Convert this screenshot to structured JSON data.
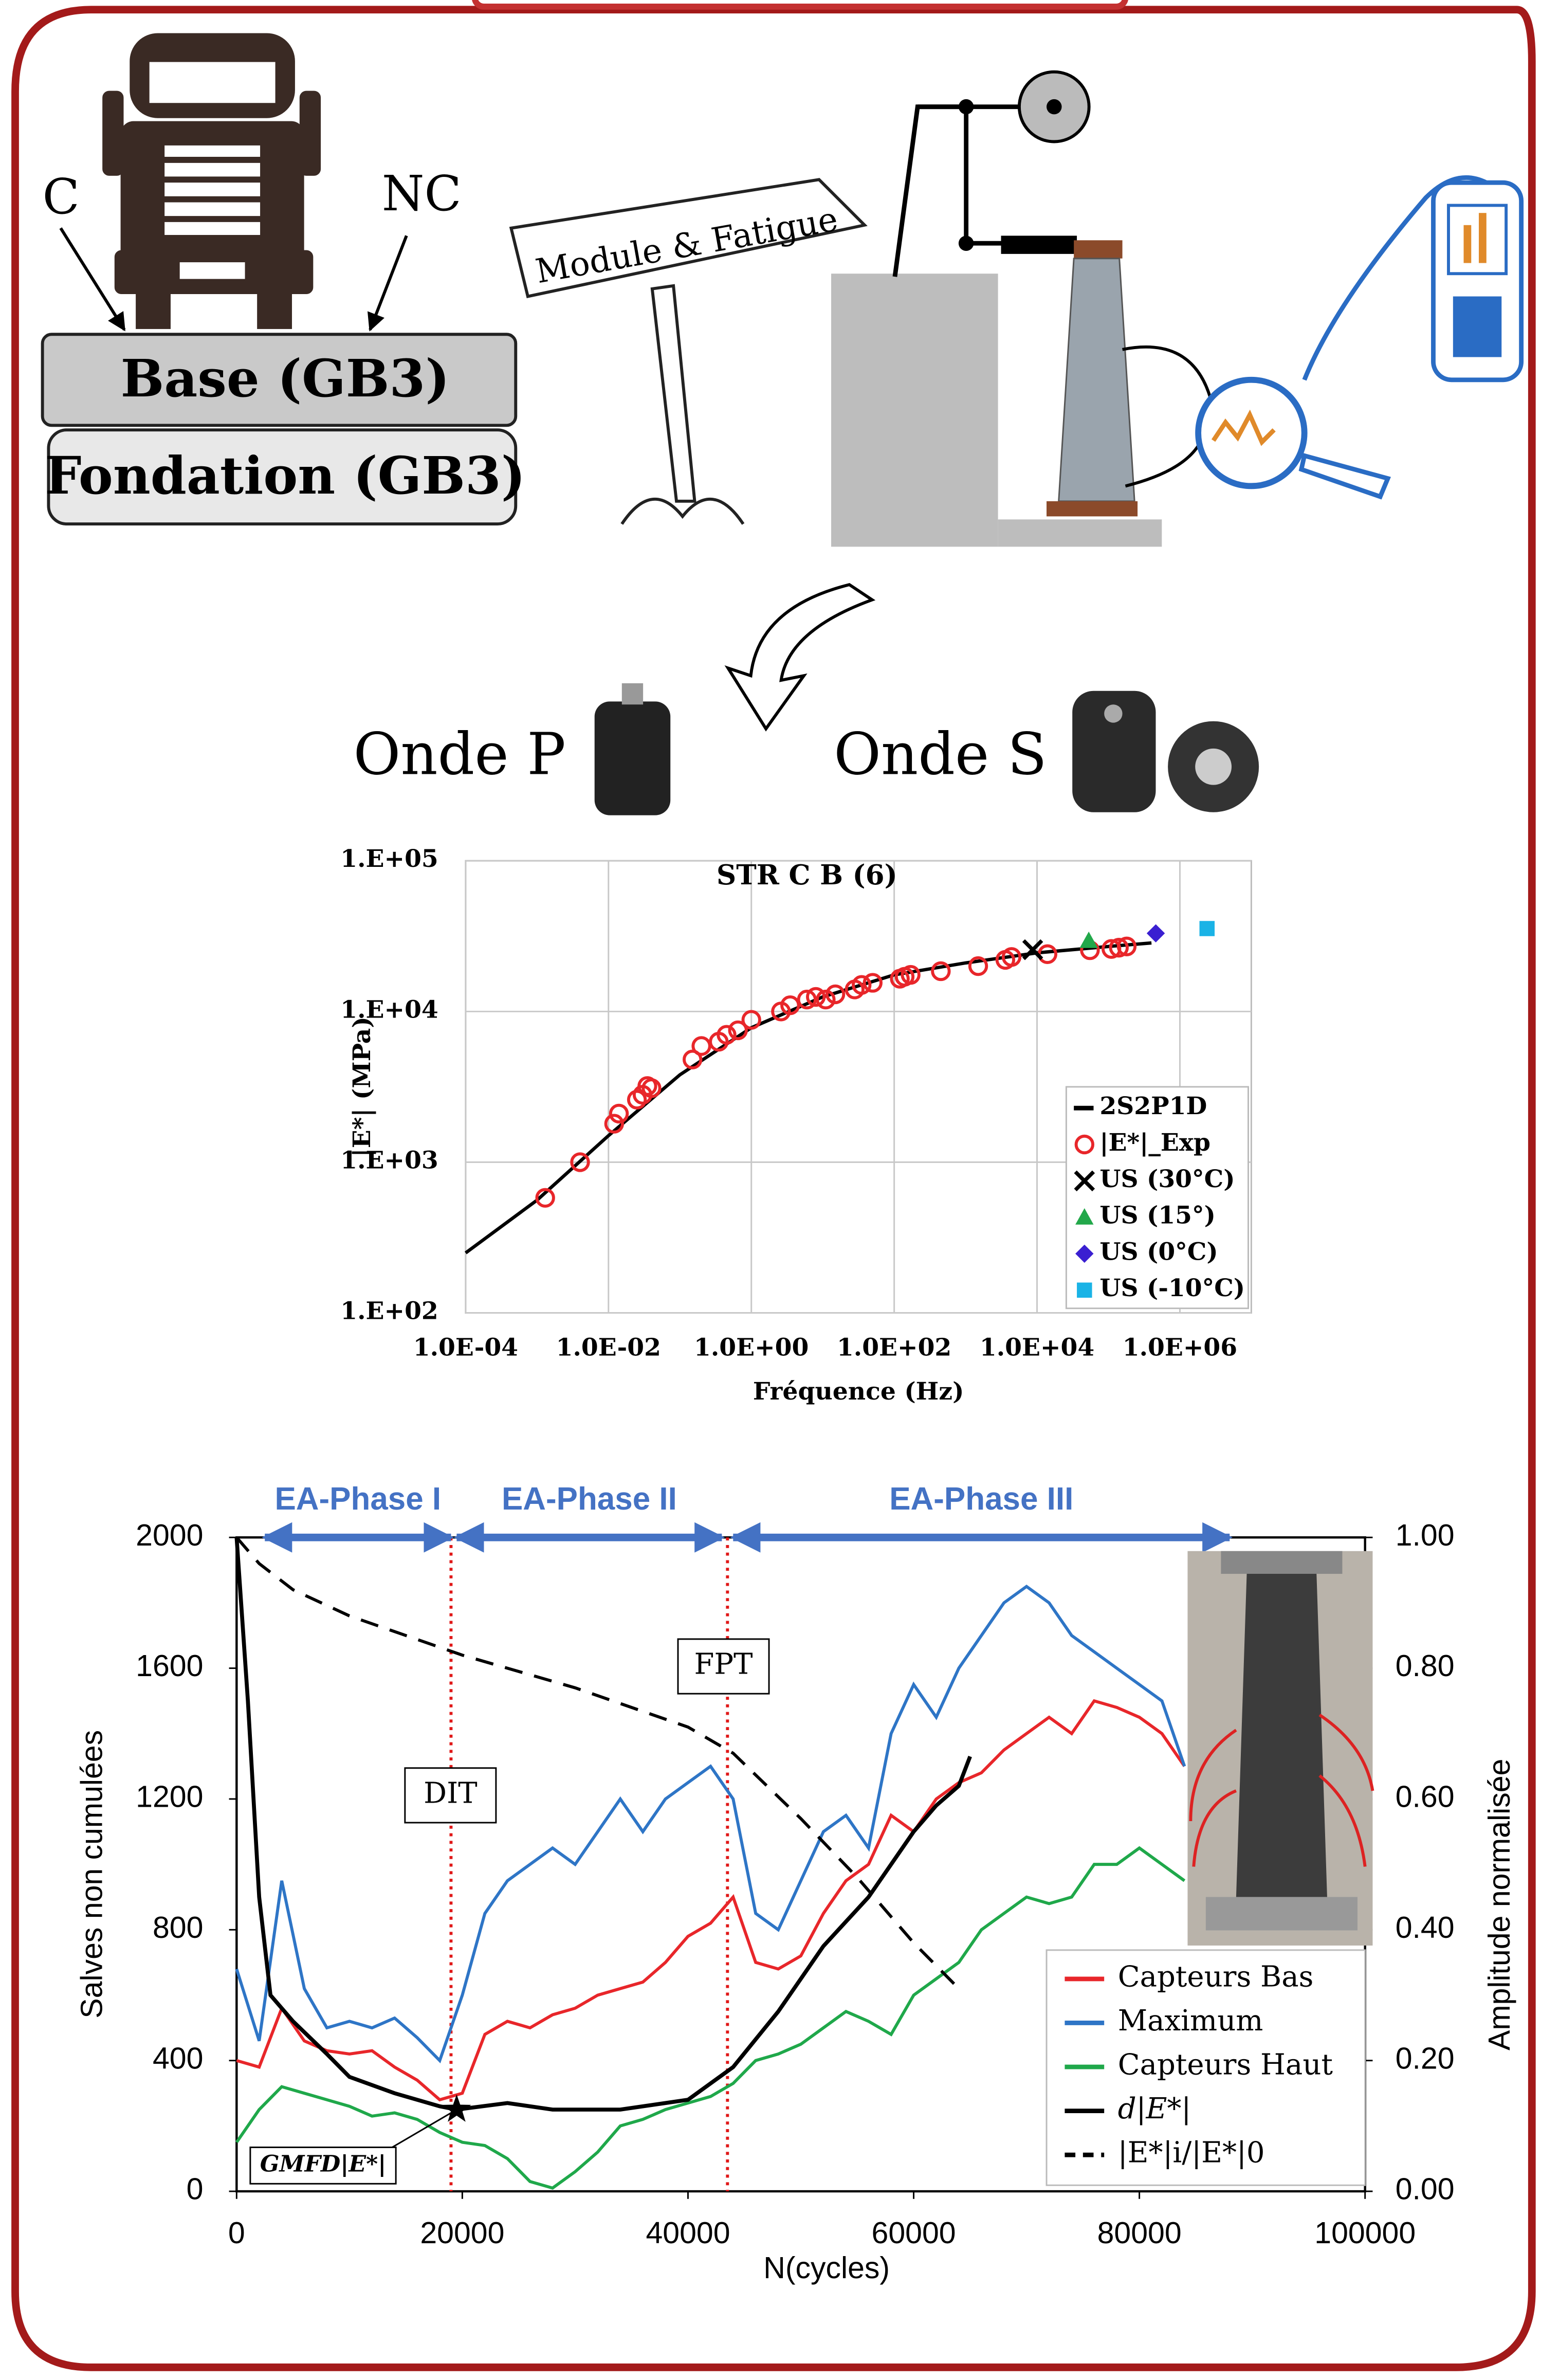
{
  "diagram": {
    "load_left": "C",
    "load_right": "NC",
    "base_layer": "Base (GB3)",
    "foundation_layer": "Fondation (GB3)",
    "signpost": "Module & Fatigue",
    "wave_p": "Onde P",
    "wave_s": "Onde S"
  },
  "chart_data": [
    {
      "type": "line",
      "title": "STR C B (6)",
      "x_label": "Fréquence (Hz)",
      "y_label": "|E*| (MPa)",
      "log_x": true,
      "log_y": true,
      "grid": true,
      "legend": "lower right",
      "xlim": [
        0.0001,
        10000000
      ],
      "ylim": [
        100,
        100000
      ],
      "xticks": [
        {
          "value": 0.0001,
          "label": "1.0E-04"
        },
        {
          "value": 0.01,
          "label": "1.0E-02"
        },
        {
          "value": 1,
          "label": "1.0E+00"
        },
        {
          "value": 100,
          "label": "1.0E+02"
        },
        {
          "value": 10000,
          "label": "1.0E+04"
        },
        {
          "value": 1000000,
          "label": "1.0E+06"
        }
      ],
      "yticks": [
        {
          "value": 100,
          "label": "1.E+02"
        },
        {
          "value": 1000,
          "label": "1.E+03"
        },
        {
          "value": 10000,
          "label": "1.E+04"
        },
        {
          "value": 100000,
          "label": "1.E+05"
        }
      ],
      "series": [
        {
          "name": "2S2P1D",
          "color": "#000000",
          "style": "line",
          "x": [
            0.0001,
            0.001,
            0.01,
            0.1,
            1,
            10,
            100,
            1000,
            10000,
            100000,
            400000
          ],
          "values": [
            250,
            560,
            1500,
            3800,
            7800,
            12500,
            17500,
            21000,
            24500,
            27000,
            28500
          ]
        },
        {
          "name": "|E*|_Exp",
          "color": "#e8262a",
          "style": "circle",
          "x": [
            0.0013,
            0.004,
            0.012,
            0.014,
            0.025,
            0.03,
            0.035,
            0.04,
            0.15,
            0.2,
            0.35,
            0.45,
            0.65,
            1,
            2.6,
            3.5,
            6,
            8,
            11,
            15,
            28,
            35,
            50,
            120,
            140,
            170,
            450,
            1500,
            3600,
            4400,
            14000,
            55000,
            110000,
            140000,
            180000
          ],
          "values": [
            580,
            1000,
            1800,
            2100,
            2600,
            2800,
            3200,
            3100,
            4800,
            5900,
            6300,
            7000,
            7500,
            8800,
            10000,
            11000,
            12000,
            12500,
            12000,
            13000,
            14000,
            15000,
            15500,
            16500,
            17000,
            17500,
            18500,
            20000,
            22000,
            23000,
            24000,
            25500,
            26000,
            26500,
            27000
          ]
        },
        {
          "name": "US (30°C)",
          "color": "#000000",
          "style": "x",
          "x": [
            8700
          ],
          "values": [
            25700
          ]
        },
        {
          "name": "US (15°)",
          "color": "#22a84a",
          "style": "triangle",
          "x": [
            53000
          ],
          "values": [
            29500
          ]
        },
        {
          "name": "US (0°C)",
          "color": "#3a1fd1",
          "style": "diamond",
          "x": [
            460000
          ],
          "values": [
            33000
          ]
        },
        {
          "name": "US (-10°C)",
          "color": "#1ab3e6",
          "style": "square",
          "x": [
            2400000
          ],
          "values": [
            35500
          ]
        }
      ]
    },
    {
      "type": "line",
      "x_label": "N(cycles)",
      "y_label": "Salves non cumulées",
      "y2_label": "Amplitude normalisée",
      "legend": "lower right",
      "xlim": [
        0,
        100000
      ],
      "ylim": [
        0,
        2000
      ],
      "y2lim": [
        0,
        1
      ],
      "xticks": [
        0,
        20000,
        40000,
        60000,
        80000,
        100000
      ],
      "yticks": [
        0,
        400,
        800,
        1200,
        1600,
        2000
      ],
      "y2ticks": [
        {
          "value": 0,
          "label": "0.00"
        },
        {
          "value": 0.2,
          "label": "0.20"
        },
        {
          "value": 0.4,
          "label": "0.40"
        },
        {
          "value": 0.6,
          "label": "0.60"
        },
        {
          "value": 0.8,
          "label": "0.80"
        },
        {
          "value": 1,
          "label": "1.00"
        }
      ],
      "vlines": [
        19000,
        43500
      ],
      "phases": [
        {
          "label": "EA-Phase I",
          "start": 2500,
          "end": 19000
        },
        {
          "label": "EA-Phase II",
          "start": 19500,
          "end": 43000
        },
        {
          "label": "EA-Phase III",
          "start": 44000,
          "end": 88000
        }
      ],
      "annotations": [
        "DIT",
        "FPT"
      ],
      "markers": [
        {
          "label": "GMFD|E*|",
          "x": 19500,
          "y": 250
        }
      ],
      "series": [
        {
          "name": "Capteurs Bas",
          "color": "#e8262a",
          "line_style": "solid",
          "x": [
            0,
            2000,
            4000,
            6000,
            8000,
            10000,
            12000,
            14000,
            16000,
            18000,
            20000,
            22000,
            24000,
            26000,
            28000,
            30000,
            32000,
            34000,
            36000,
            38000,
            40000,
            42000,
            44000,
            46000,
            48000,
            50000,
            52000,
            54000,
            56000,
            58000,
            60000,
            62000,
            64000,
            66000,
            68000,
            70000,
            72000,
            74000,
            76000,
            78000,
            80000,
            82000,
            84000
          ],
          "values": [
            400,
            380,
            560,
            460,
            430,
            420,
            430,
            380,
            340,
            280,
            300,
            480,
            520,
            500,
            540,
            560,
            600,
            620,
            640,
            700,
            780,
            820,
            900,
            700,
            680,
            720,
            850,
            950,
            1000,
            1150,
            1100,
            1200,
            1250,
            1280,
            1350,
            1400,
            1450,
            1400,
            1500,
            1480,
            1450,
            1400,
            1300
          ]
        },
        {
          "name": "Maximum",
          "color": "#2e75c6",
          "line_style": "solid",
          "x": [
            0,
            2000,
            4000,
            6000,
            8000,
            10000,
            12000,
            14000,
            16000,
            18000,
            20000,
            22000,
            24000,
            26000,
            28000,
            30000,
            32000,
            34000,
            36000,
            38000,
            40000,
            42000,
            44000,
            46000,
            48000,
            50000,
            52000,
            54000,
            56000,
            58000,
            60000,
            62000,
            64000,
            66000,
            68000,
            70000,
            72000,
            74000,
            76000,
            78000,
            80000,
            82000,
            84000
          ],
          "values": [
            680,
            460,
            950,
            620,
            500,
            520,
            500,
            530,
            470,
            400,
            600,
            850,
            950,
            1000,
            1050,
            1000,
            1100,
            1200,
            1100,
            1200,
            1250,
            1300,
            1200,
            850,
            800,
            950,
            1100,
            1150,
            1050,
            1400,
            1550,
            1450,
            1600,
            1700,
            1800,
            1850,
            1800,
            1700,
            1650,
            1600,
            1550,
            1500,
            1300
          ]
        },
        {
          "name": "Capteurs Haut",
          "color": "#1fa84a",
          "line_style": "solid",
          "x": [
            0,
            2000,
            4000,
            6000,
            8000,
            10000,
            12000,
            14000,
            16000,
            18000,
            20000,
            22000,
            24000,
            26000,
            28000,
            30000,
            32000,
            34000,
            36000,
            38000,
            40000,
            42000,
            44000,
            46000,
            48000,
            50000,
            52000,
            54000,
            56000,
            58000,
            60000,
            62000,
            64000,
            66000,
            68000,
            70000,
            72000,
            74000,
            76000,
            78000,
            80000,
            82000,
            84000
          ],
          "values": [
            150,
            250,
            320,
            300,
            280,
            260,
            230,
            240,
            220,
            180,
            150,
            140,
            100,
            30,
            10,
            60,
            120,
            200,
            220,
            250,
            270,
            290,
            330,
            400,
            420,
            450,
            500,
            550,
            520,
            480,
            600,
            650,
            700,
            800,
            850,
            900,
            880,
            900,
            1000,
            1000,
            1050,
            1000,
            950
          ]
        },
        {
          "name": "d|E*|",
          "color": "#000000",
          "line_style": "solid",
          "x": [
            0,
            1000,
            2000,
            3000,
            5000,
            8000,
            10000,
            14000,
            18000,
            19500,
            24000,
            28000,
            34000,
            40000,
            44000,
            48000,
            52000,
            56000,
            60000,
            62000,
            64000,
            65000
          ],
          "values": [
            2000,
            1500,
            900,
            600,
            520,
            420,
            350,
            300,
            260,
            250,
            270,
            250,
            250,
            280,
            380,
            550,
            750,
            900,
            1100,
            1180,
            1240,
            1330
          ]
        },
        {
          "name": "|E*|i/|E*|0",
          "color": "#000000",
          "line_style": "dashed",
          "axis": "y2",
          "x": [
            0,
            2000,
            5000,
            10000,
            20000,
            30000,
            40000,
            44000,
            50000,
            55000,
            60000,
            64000
          ],
          "values": [
            1,
            0.96,
            0.92,
            0.88,
            0.82,
            0.77,
            0.71,
            0.67,
            0.57,
            0.48,
            0.38,
            0.31
          ]
        }
      ]
    }
  ]
}
